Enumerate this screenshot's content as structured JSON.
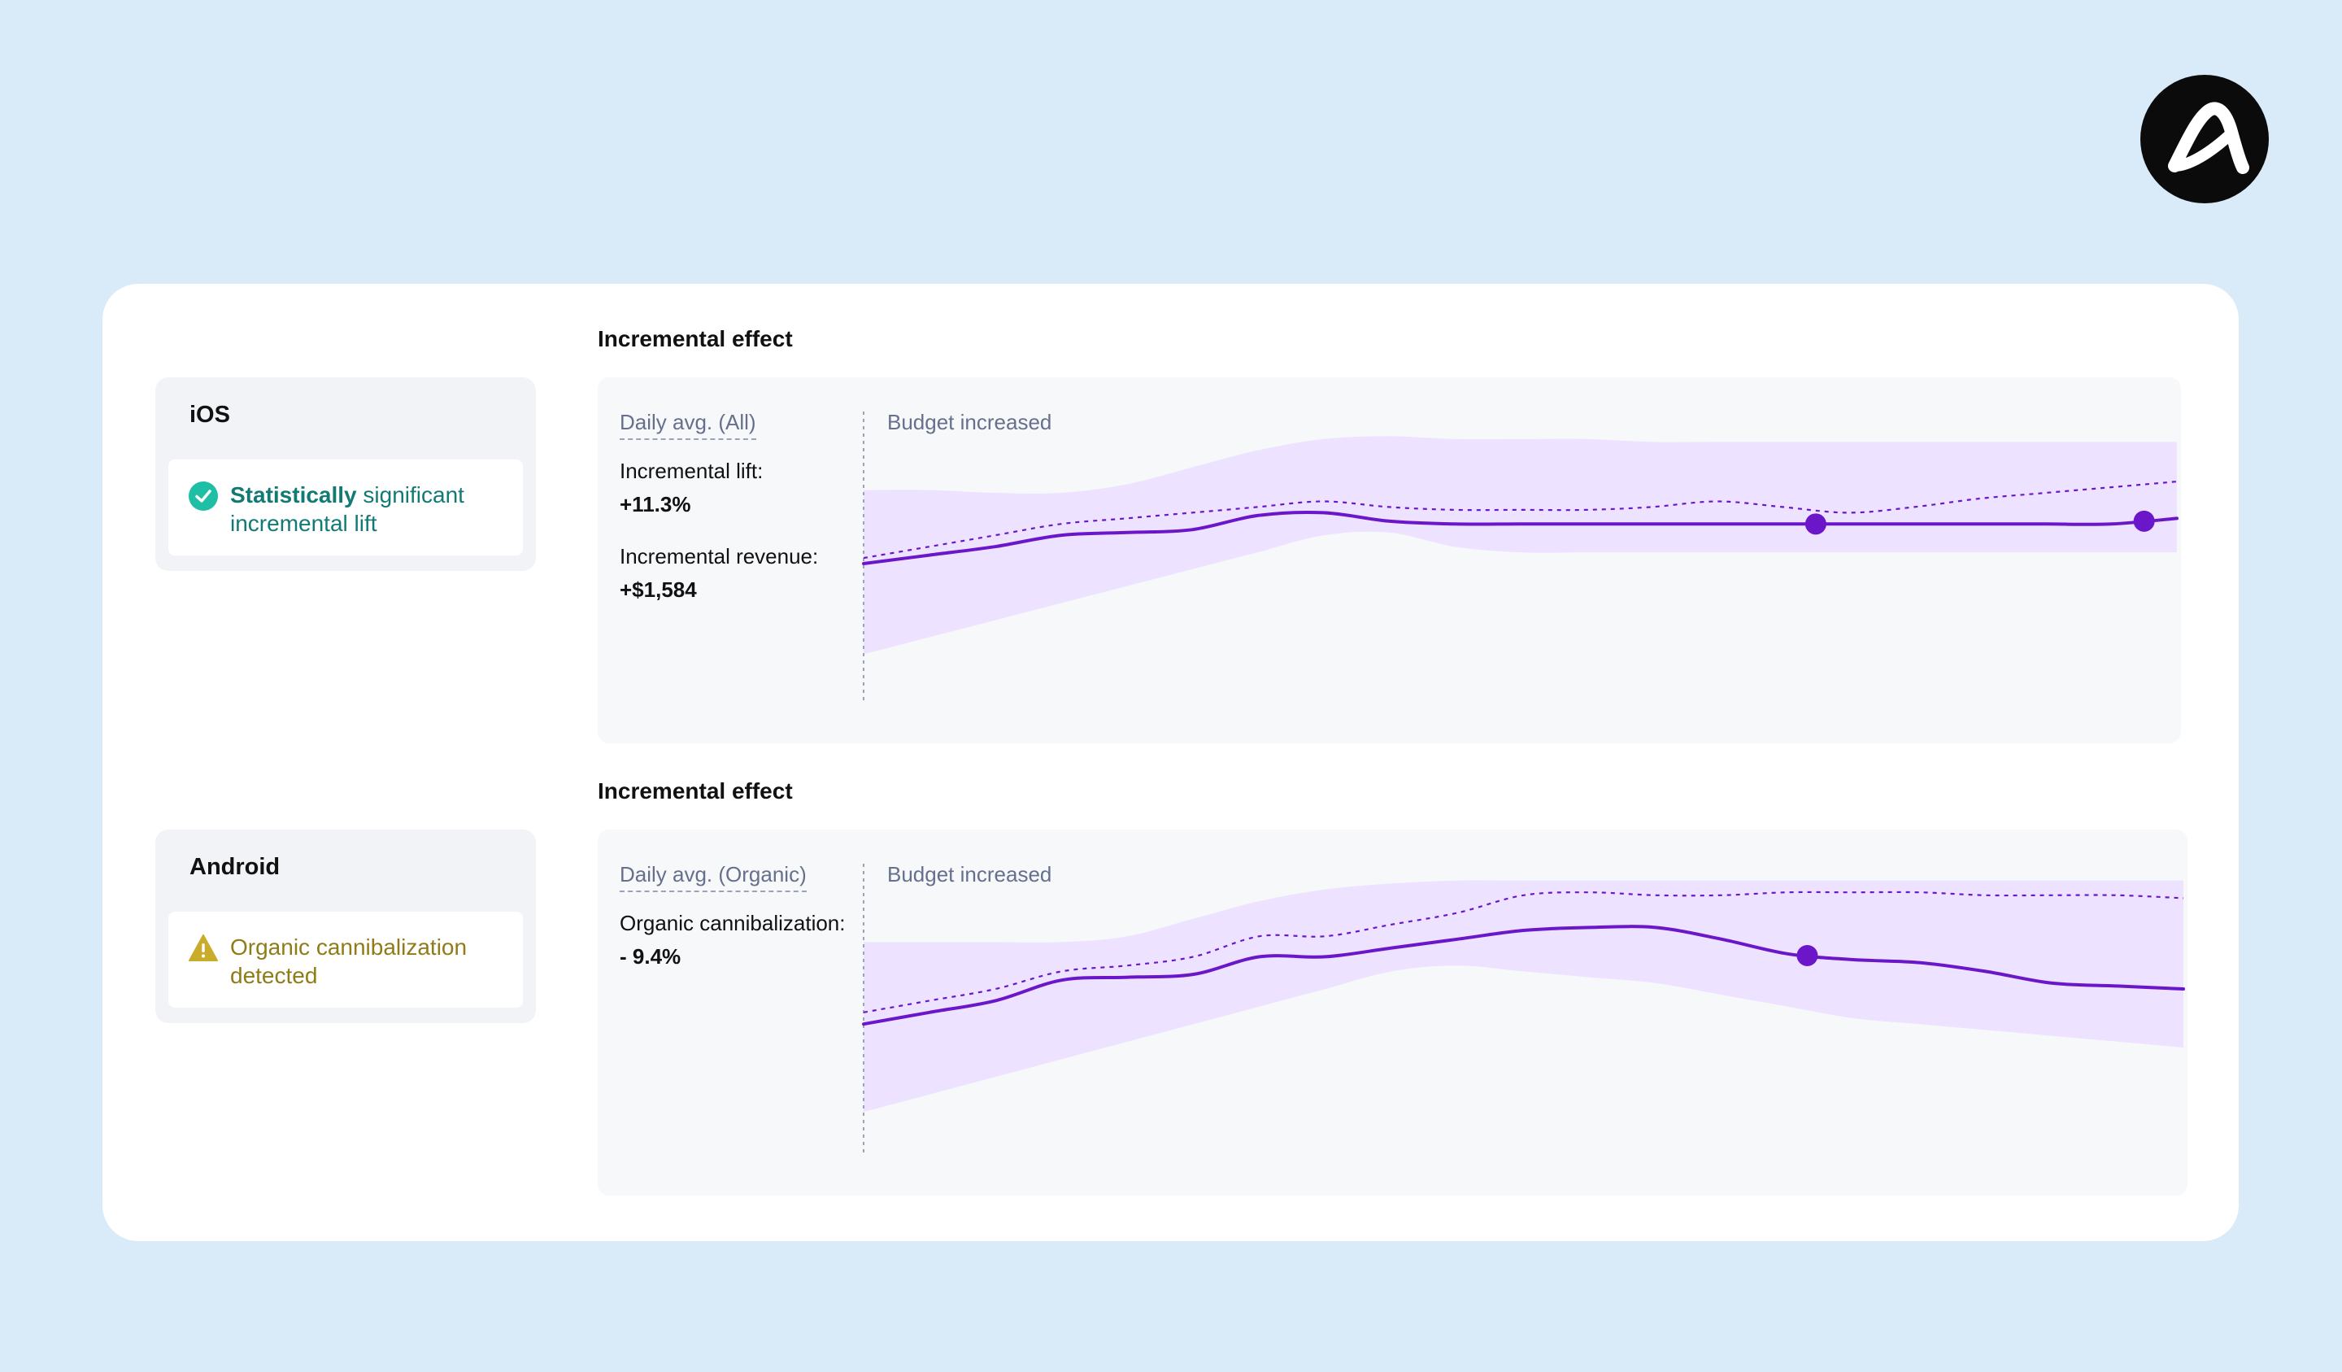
{
  "brand": {
    "logo_name": "Adjust",
    "logo_color": "#0b0b0b",
    "background": "#d9ebf9"
  },
  "ios": {
    "section_title": "Incremental effect",
    "platform": "iOS",
    "status_bold": "Statistically",
    "status_rest": " significant incremental lift",
    "status_color": "#127a74",
    "panel_label": "Daily avg. (All)",
    "budget_label": "Budget increased",
    "metric1_label": "Incremental lift:",
    "metric1_value": "+11.3%",
    "metric2_label": "Incremental revenue:",
    "metric2_value": "+$1,584"
  },
  "android": {
    "section_title": "Incremental effect",
    "platform": "Android",
    "status_text": "Organic cannibalization detected",
    "status_color": "#8f7c18",
    "panel_label": "Daily avg. (Organic)",
    "budget_label": "Budget increased",
    "metric1_label": "Organic cannibalization:",
    "metric1_value": "- 9.4%"
  },
  "chart_data": [
    {
      "type": "line",
      "title": "Incremental effect",
      "subtitle": "Daily avg. (All)",
      "annotation": "Budget increased",
      "x": [
        0,
        5,
        10,
        15,
        20,
        25,
        30,
        35,
        40,
        45,
        50,
        55,
        60,
        65,
        70,
        75,
        80,
        85,
        90,
        95,
        100
      ],
      "series": [
        {
          "name": "actual",
          "style": "solid",
          "values": [
            52,
            55,
            58,
            62,
            63,
            64,
            69,
            70,
            67,
            66,
            66,
            66,
            66,
            66,
            66,
            66,
            66,
            66,
            66,
            66,
            68
          ],
          "markers_at_x": [
            72.5,
            97.5
          ]
        },
        {
          "name": "counterfactual",
          "style": "dashed",
          "values": [
            54,
            58,
            62,
            66,
            68,
            70,
            72,
            74,
            72,
            71,
            71,
            71,
            72,
            74,
            72,
            70,
            72,
            75,
            77,
            79,
            81
          ]
        },
        {
          "name": "band_upper",
          "style": "band",
          "values": [
            78,
            78,
            77,
            77,
            80,
            86,
            92,
            96,
            97,
            96,
            96,
            96,
            95,
            95,
            95,
            95,
            95,
            95,
            95,
            95,
            95
          ]
        },
        {
          "name": "band_lower",
          "style": "band",
          "values": [
            20,
            26,
            32,
            38,
            44,
            50,
            56,
            62,
            63,
            58,
            56,
            56,
            56,
            56,
            56,
            56,
            56,
            56,
            56,
            56,
            56
          ]
        }
      ],
      "ylim": [
        0,
        100
      ],
      "colors": {
        "line": "#6b17c9",
        "dashed": "#6b17c9",
        "band": "#ede2ff",
        "marker": "#6b17c9"
      }
    },
    {
      "type": "line",
      "title": "Incremental effect",
      "subtitle": "Daily avg. (Organic)",
      "annotation": "Budget increased",
      "x": [
        0,
        5,
        10,
        15,
        20,
        25,
        30,
        35,
        40,
        45,
        50,
        55,
        60,
        65,
        70,
        75,
        80,
        85,
        90,
        95,
        100
      ],
      "series": [
        {
          "name": "actual",
          "style": "solid",
          "values": [
            48,
            52,
            56,
            63,
            64,
            65,
            71,
            71,
            74,
            77,
            80,
            81,
            81,
            77,
            72,
            70,
            69,
            66,
            62,
            61,
            60
          ],
          "markers_at_x": [
            71.5
          ]
        },
        {
          "name": "counterfactual",
          "style": "dashed",
          "values": [
            52,
            56,
            60,
            66,
            68,
            71,
            78,
            78,
            82,
            86,
            92,
            93,
            92,
            92,
            93,
            93,
            93,
            92,
            92,
            92,
            91
          ]
        },
        {
          "name": "band_upper",
          "style": "band",
          "values": [
            76,
            76,
            76,
            76,
            78,
            84,
            90,
            94,
            96,
            97,
            97,
            97,
            97,
            97,
            97,
            97,
            97,
            97,
            97,
            97,
            97
          ]
        },
        {
          "name": "band_lower",
          "style": "band",
          "values": [
            18,
            24,
            30,
            36,
            42,
            48,
            54,
            60,
            66,
            68,
            66,
            64,
            62,
            58,
            54,
            50,
            48,
            46,
            44,
            42,
            40
          ]
        }
      ],
      "ylim": [
        0,
        100
      ],
      "colors": {
        "line": "#6b17c9",
        "dashed": "#6b17c9",
        "band": "#ede2ff",
        "marker": "#6b17c9"
      }
    }
  ]
}
